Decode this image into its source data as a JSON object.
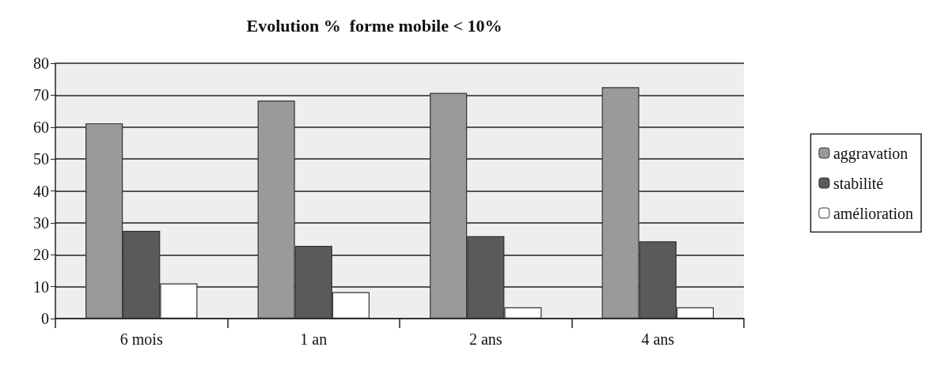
{
  "chart_data": {
    "type": "bar",
    "title": "Evolution %  forme mobile < 10%",
    "categories": [
      "6 mois",
      "1 an",
      "2 ans",
      "4 ans"
    ],
    "series": [
      {
        "name": "aggravation",
        "color": "#9a9a9a",
        "values": [
          61.2,
          68.3,
          70.7,
          72.5
        ]
      },
      {
        "name": "stabilité",
        "color": "#5a5a5a",
        "values": [
          27.5,
          22.8,
          25.8,
          24.2
        ]
      },
      {
        "name": "amélioration",
        "color": "#ffffff",
        "values": [
          11,
          8.3,
          3.5,
          3.5
        ]
      }
    ],
    "ylim": [
      0,
      80
    ],
    "yticks": [
      0,
      10,
      20,
      30,
      40,
      50,
      60,
      70,
      80
    ],
    "grid": "y",
    "legend": "right"
  }
}
